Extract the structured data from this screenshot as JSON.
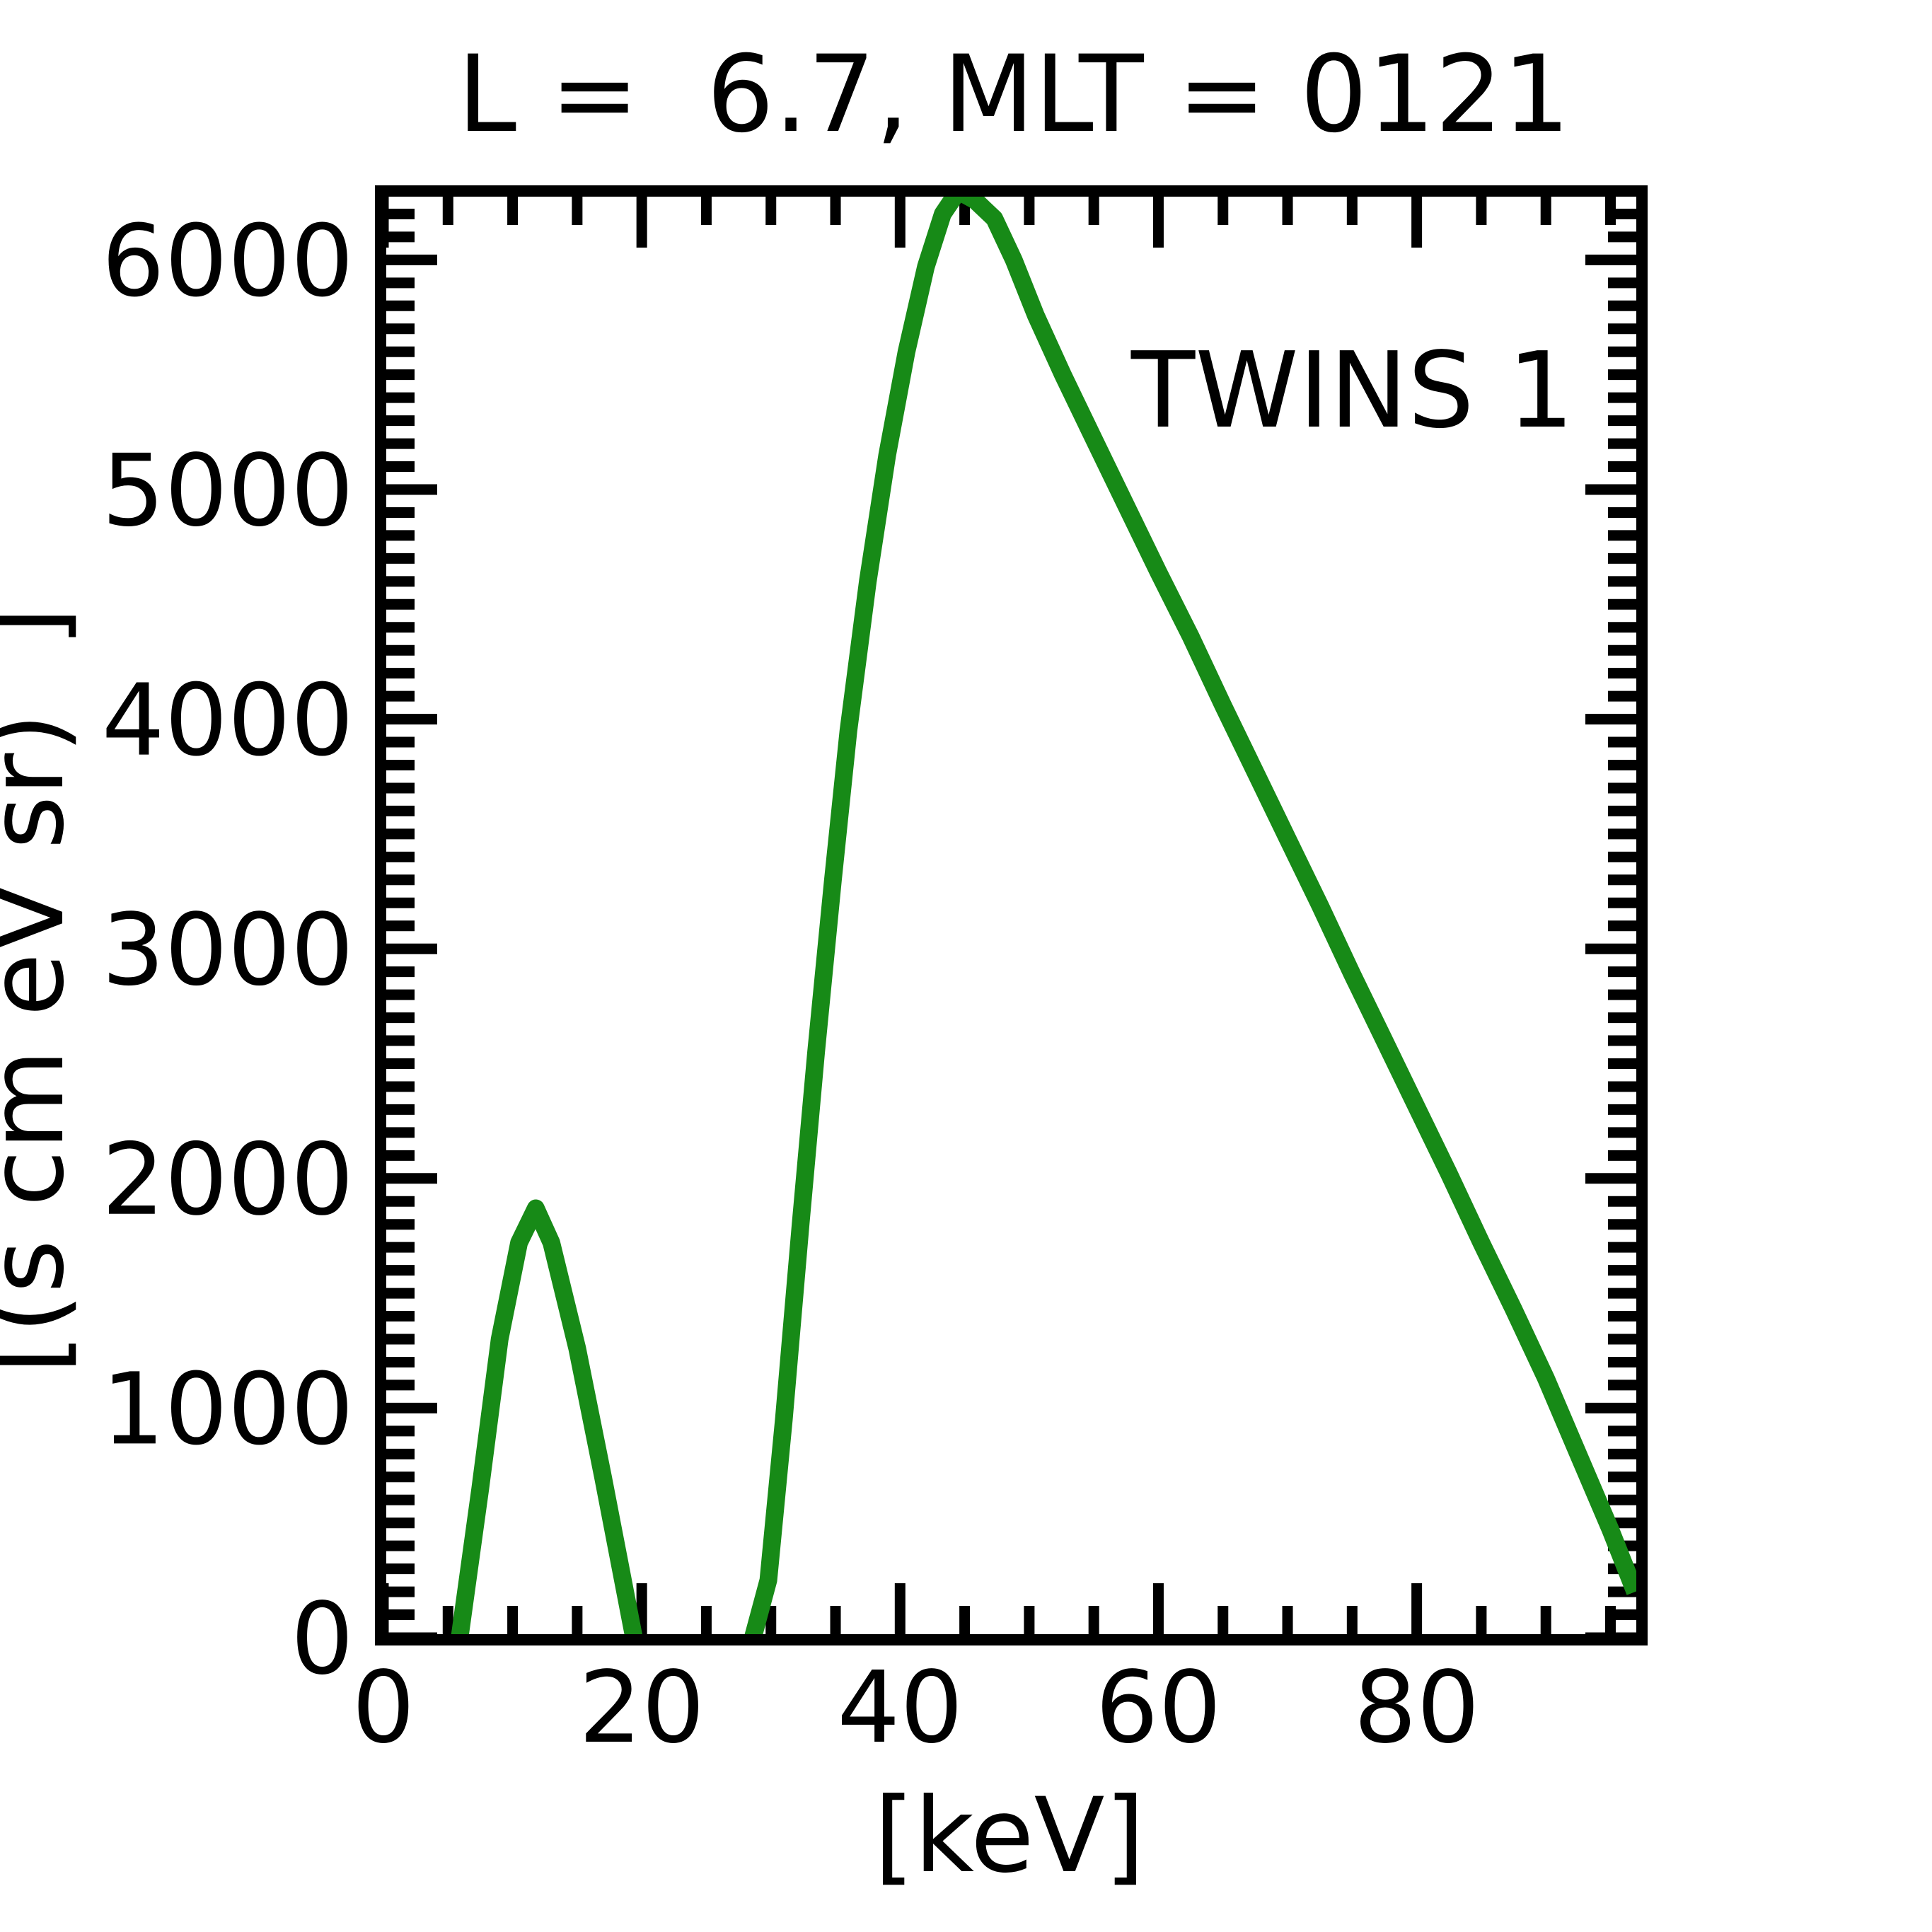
{
  "title": "L =  6.7, MLT = 0121",
  "chart_data": {
    "type": "line",
    "title": "L =  6.7, MLT = 0121",
    "xlabel": "[keV]",
    "ylabel": "[(s cm eV sr)  ]",
    "xlim": [
      0,
      97
    ],
    "ylim": [
      0,
      6300
    ],
    "x_major_ticks": [
      0,
      20,
      40,
      60,
      80
    ],
    "x_minor_tick_step": 5,
    "y_major_ticks": [
      0,
      1000,
      2000,
      3000,
      4000,
      5000,
      6000
    ],
    "y_minor_tick_step": 100,
    "grid": false,
    "tick_direction": "in",
    "frame_color": "#000000",
    "background_color": "#ffffff",
    "legend": {
      "label": "TWINS 1",
      "position": "upper-right-inside",
      "color": "#178a17"
    },
    "series": [
      {
        "name": "TWINS 1",
        "color": "#178a17",
        "x": [
          5.2,
          5.9,
          7.5,
          9,
          10.5,
          11.8,
          13,
          15,
          17,
          19.4,
          20.3,
          27.7,
          28.6,
          29.8,
          31,
          32.3,
          33.5,
          34.8,
          36,
          37.5,
          39,
          40.5,
          42,
          43.3,
          44.5,
          45.8,
          47.3,
          48.8,
          50.5,
          52.6,
          55,
          57.5,
          60,
          62.5,
          65,
          67.5,
          70,
          72.5,
          75,
          77.5,
          80,
          82.5,
          85,
          87.5,
          90,
          92.5,
          95,
          96.9
        ],
        "y": [
          -200,
          0,
          650,
          1300,
          1720,
          1870,
          1720,
          1260,
          700,
          0,
          -200,
          -200,
          0,
          250,
          950,
          1800,
          2550,
          3300,
          3950,
          4600,
          5150,
          5600,
          5970,
          6200,
          6300,
          6260,
          6180,
          6000,
          5760,
          5500,
          5220,
          4930,
          4640,
          4360,
          4060,
          3770,
          3480,
          3190,
          2890,
          2600,
          2310,
          2020,
          1720,
          1430,
          1130,
          800,
          470,
          200
        ]
      }
    ]
  }
}
